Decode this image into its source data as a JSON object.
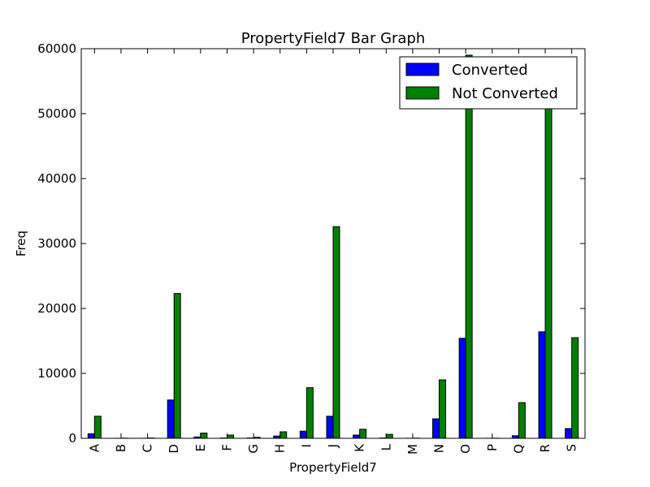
{
  "chart_data": {
    "type": "bar",
    "title": "PropertyField7 Bar Graph",
    "xlabel": "PropertyField7",
    "ylabel": "Freq",
    "ylim": [
      0,
      60000
    ],
    "yticks": [
      0,
      10000,
      20000,
      30000,
      40000,
      50000,
      60000
    ],
    "categories": [
      "A",
      "B",
      "C",
      "D",
      "E",
      "F",
      "G",
      "H",
      "I",
      "J",
      "K",
      "L",
      "M",
      "N",
      "O",
      "P",
      "Q",
      "R",
      "S"
    ],
    "series": [
      {
        "name": "Converted",
        "color": "#0000ff",
        "values": [
          700,
          10,
          10,
          5900,
          200,
          50,
          50,
          350,
          1100,
          3400,
          500,
          50,
          10,
          3000,
          15400,
          10,
          400,
          16400,
          1500
        ]
      },
      {
        "name": "Not Converted",
        "color": "#008000",
        "values": [
          3400,
          30,
          50,
          22300,
          800,
          500,
          150,
          1000,
          7800,
          32600,
          1400,
          600,
          30,
          9000,
          59000,
          20,
          5500,
          53000,
          15500
        ]
      }
    ],
    "legend": {
      "placement": "top-right"
    },
    "grid": false
  }
}
